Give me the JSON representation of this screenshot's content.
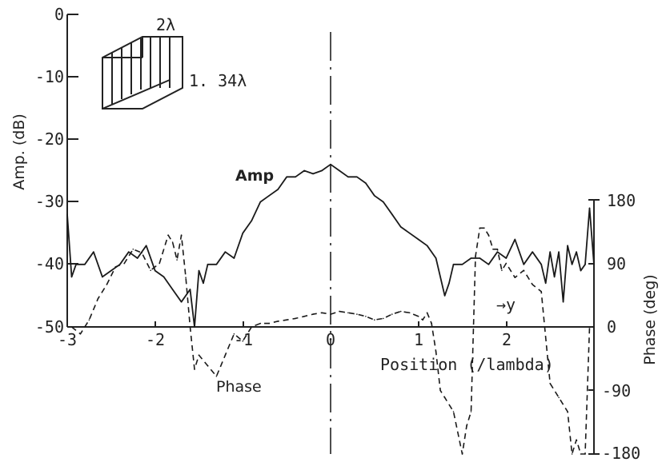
{
  "chart_data": {
    "type": "line",
    "xlabel": "Position (/lambda)",
    "x_ticks": [
      "-3",
      "-2",
      "-1",
      "0",
      "1",
      "2"
    ],
    "xlim": [
      -3,
      3
    ],
    "ylabel_left": "Amp. (dB)",
    "y_left_ticks": [
      "0",
      "-10",
      "-20",
      "-30",
      "-40",
      "-50"
    ],
    "ylim_left": [
      -50,
      0
    ],
    "ylabel_right": "Phase (deg)",
    "y_right_ticks": [
      "180",
      "90",
      "0",
      "-90",
      "-180"
    ],
    "ylim_right": [
      -180,
      180
    ],
    "annotations": {
      "amp": "Amp",
      "phase": "Phase",
      "y_dir": "→y",
      "inset_width": "2λ",
      "inset_height": "1. 34λ"
    },
    "series": [
      {
        "name": "Amp",
        "axis": "left",
        "style": "solid",
        "x": [
          -3.0,
          -2.95,
          -2.9,
          -2.8,
          -2.7,
          -2.6,
          -2.5,
          -2.4,
          -2.3,
          -2.2,
          -2.1,
          -2.0,
          -1.9,
          -1.8,
          -1.7,
          -1.6,
          -1.55,
          -1.5,
          -1.45,
          -1.4,
          -1.3,
          -1.2,
          -1.1,
          -1.0,
          -0.9,
          -0.8,
          -0.7,
          -0.6,
          -0.5,
          -0.4,
          -0.3,
          -0.2,
          -0.1,
          0.0,
          0.1,
          0.2,
          0.3,
          0.4,
          0.5,
          0.6,
          0.7,
          0.8,
          0.9,
          1.0,
          1.1,
          1.2,
          1.3,
          1.35,
          1.4,
          1.5,
          1.6,
          1.7,
          1.8,
          1.9,
          2.0,
          2.1,
          2.2,
          2.3,
          2.4,
          2.45,
          2.5,
          2.55,
          2.6,
          2.65,
          2.7,
          2.75,
          2.8,
          2.85,
          2.9,
          2.95,
          3.0
        ],
        "y": [
          -32,
          -42,
          -40,
          -40,
          -38,
          -42,
          -41,
          -40,
          -38,
          -39,
          -37,
          -41,
          -42,
          -44,
          -46,
          -44,
          -50,
          -41,
          -43,
          -40,
          -40,
          -38,
          -39,
          -35,
          -33,
          -30,
          -29,
          -28,
          -26,
          -26,
          -25,
          -25.5,
          -25,
          -24,
          -25,
          -26,
          -26,
          -27,
          -29,
          -30,
          -32,
          -34,
          -35,
          -36,
          -37,
          -39,
          -45,
          -43,
          -40,
          -40,
          -39,
          -39,
          -40,
          -38,
          -39,
          -36,
          -40,
          -38,
          -40,
          -43,
          -38,
          -42,
          -38,
          -46,
          -37,
          -40,
          -38,
          -41,
          -40,
          -31,
          -40
        ]
      },
      {
        "name": "Phase",
        "axis": "right",
        "style": "dashed",
        "x": [
          -2.95,
          -2.85,
          -2.75,
          -2.65,
          -2.55,
          -2.45,
          -2.35,
          -2.25,
          -2.15,
          -2.05,
          -1.95,
          -1.85,
          -1.8,
          -1.75,
          -1.7,
          -1.65,
          -1.6,
          -1.55,
          -1.5,
          -1.4,
          -1.3,
          -1.2,
          -1.1,
          -1.0,
          -0.9,
          -0.8,
          -0.7,
          -0.6,
          -0.5,
          -0.4,
          -0.3,
          -0.2,
          -0.1,
          0.0,
          0.1,
          0.2,
          0.3,
          0.4,
          0.5,
          0.6,
          0.7,
          0.8,
          0.9,
          1.0,
          1.05,
          1.1,
          1.15,
          1.2,
          1.25,
          1.3,
          1.4,
          1.5,
          1.55,
          1.6,
          1.65,
          1.7,
          1.75,
          1.8,
          1.85,
          1.9,
          1.95,
          2.0,
          2.1,
          2.2,
          2.3,
          2.4,
          2.5,
          2.6,
          2.7,
          2.75,
          2.8,
          2.85,
          2.9,
          2.95,
          3.0
        ],
        "y": [
          0,
          -10,
          10,
          40,
          60,
          85,
          90,
          110,
          105,
          80,
          90,
          130,
          120,
          95,
          130,
          70,
          0,
          -60,
          -40,
          -55,
          -70,
          -40,
          -10,
          -20,
          0,
          5,
          5,
          8,
          10,
          12,
          15,
          18,
          20,
          18,
          22,
          20,
          18,
          15,
          10,
          12,
          18,
          22,
          20,
          15,
          10,
          20,
          5,
          -35,
          -90,
          -100,
          -120,
          -180,
          -140,
          -120,
          100,
          140,
          140,
          130,
          110,
          110,
          80,
          90,
          70,
          80,
          60,
          50,
          -80,
          -100,
          -120,
          -180,
          -160,
          -180,
          -180,
          0,
          0
        ]
      }
    ]
  }
}
